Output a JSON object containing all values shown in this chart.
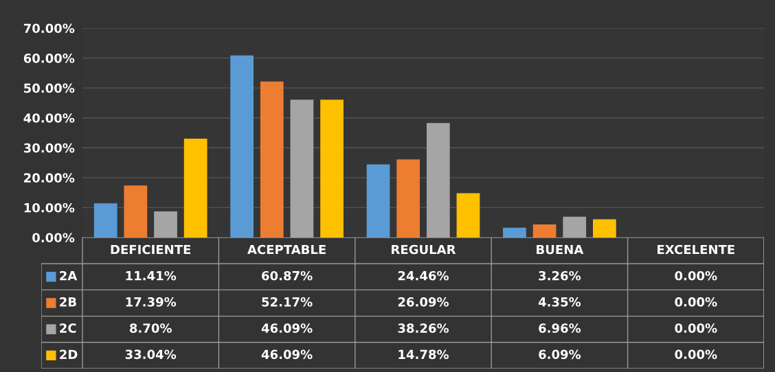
{
  "chart_data": {
    "type": "bar",
    "categories": [
      "DEFICIENTE",
      "ACEPTABLE",
      "REGULAR",
      "BUENA",
      "EXCELENTE"
    ],
    "series": [
      {
        "name": "2A",
        "color": "#5b9bd5",
        "values": [
          11.41,
          60.87,
          24.46,
          3.26,
          0.0
        ],
        "value_labels": [
          "11.41%",
          "60.87%",
          "24.46%",
          "3.26%",
          "0.00%"
        ]
      },
      {
        "name": "2B",
        "color": "#ed7d31",
        "values": [
          17.39,
          52.17,
          26.09,
          4.35,
          0.0
        ],
        "value_labels": [
          "17.39%",
          "52.17%",
          "26.09%",
          "4.35%",
          "0.00%"
        ]
      },
      {
        "name": "2C",
        "color": "#a5a5a5",
        "values": [
          8.7,
          46.09,
          38.26,
          6.96,
          0.0
        ],
        "value_labels": [
          "8.70%",
          "46.09%",
          "38.26%",
          "6.96%",
          "0.00%"
        ]
      },
      {
        "name": "2D",
        "color": "#ffc000",
        "values": [
          33.04,
          46.09,
          14.78,
          6.09,
          0.0
        ],
        "value_labels": [
          "33.04%",
          "46.09%",
          "14.78%",
          "6.09%",
          "0.00%"
        ]
      }
    ],
    "ylim": [
      0,
      70
    ],
    "yticks": [
      {
        "value": 0,
        "label": "0.00%"
      },
      {
        "value": 10,
        "label": "10.00%"
      },
      {
        "value": 20,
        "label": "20.00%"
      },
      {
        "value": 30,
        "label": "30.00%"
      },
      {
        "value": 40,
        "label": "40.00%"
      },
      {
        "value": 50,
        "label": "50.00%"
      },
      {
        "value": 60,
        "label": "60.00%"
      },
      {
        "value": 70,
        "label": "70.00%"
      }
    ],
    "grid": "y",
    "legend": "left"
  }
}
